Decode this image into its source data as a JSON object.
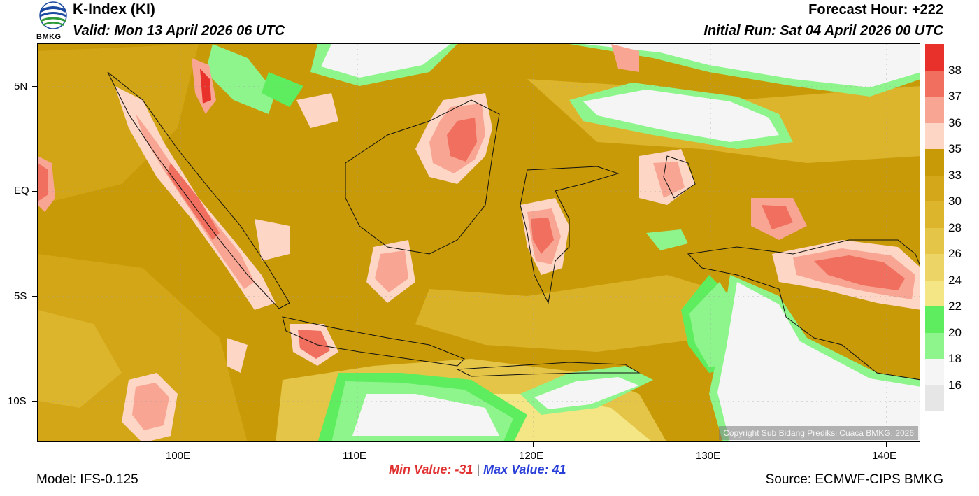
{
  "header": {
    "logo_text": "BMKG",
    "title": "K-Index (KI)",
    "valid": "Valid: Mon 13 April 2026 06 UTC",
    "forecast_hour": "Forecast Hour: +222",
    "initial_run": "Initial Run: Sat 04 April 2026 00 UTC"
  },
  "map": {
    "copyright": "Copyright Sub Bidang Prediksi Cuaca BMKG, 2026",
    "lat_labels": [
      "5N",
      "EQ",
      "5S",
      "10S"
    ],
    "lon_labels": [
      "100E",
      "110E",
      "120E",
      "130E",
      "140E"
    ]
  },
  "colorbar": {
    "labels": [
      "38",
      "37",
      "36",
      "35",
      "33",
      "30",
      "28",
      "26",
      "24",
      "22",
      "20",
      "18",
      "16"
    ],
    "colors": [
      "#e8312a",
      "#f06f5e",
      "#f9a593",
      "#fdd6c6",
      "#c89a08",
      "#d3a719",
      "#dcb52c",
      "#e4c547",
      "#ecd566",
      "#f4e585",
      "#5ded5e",
      "#8ef58d",
      "#f5f5f5",
      "#e6e6e6"
    ]
  },
  "footer": {
    "min_value": "Min Value: -31",
    "separator": "|",
    "max_value": "Max Value:  41",
    "model": "Model: IFS-0.125",
    "source": "Source: ECMWF-CIPS BMKG"
  }
}
